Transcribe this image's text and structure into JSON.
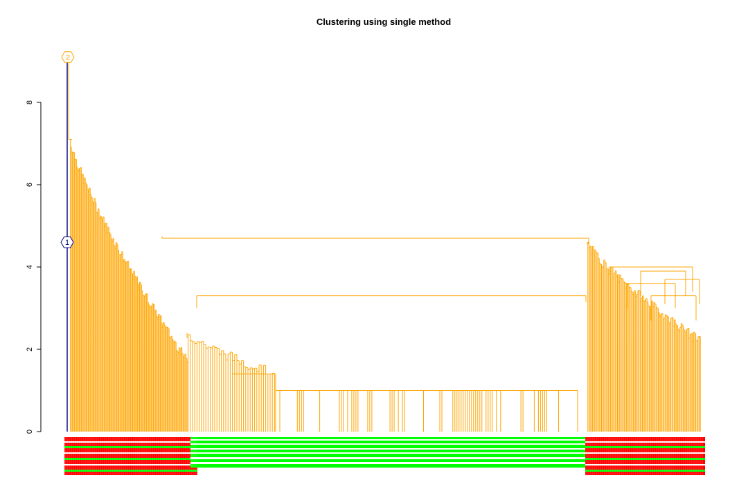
{
  "chart_data": {
    "type": "dendrogram",
    "title": "Clustering using single method",
    "xlabel": "",
    "ylabel": "",
    "ylim": [
      0,
      9.1
    ],
    "yticks": [
      0,
      2,
      4,
      6,
      8
    ],
    "colors": {
      "cluster_1": "#000080",
      "cluster_2": "#ffa500",
      "label_red": "#ff0000",
      "label_green": "#00ff00"
    },
    "clusters": [
      {
        "label": "1",
        "height": 4.6,
        "branch_color": "#000080"
      },
      {
        "label": "2",
        "height": 9.1,
        "branch_color": "#ffa500"
      }
    ],
    "root_height": 9.1,
    "major_merges": [
      {
        "height": 4.7,
        "description": "left block with right block"
      },
      {
        "height": 3.3,
        "description": "central low group with left block"
      }
    ],
    "groups": {
      "left_steep": {
        "leaves": 120,
        "heights_from": 7.1,
        "heights_to": 1.7
      },
      "mid_plateau": {
        "leaves": 40,
        "height": 1.4
      },
      "central_flat": {
        "leaves": 150,
        "height": 1.0
      },
      "right_block": {
        "leaves": 100,
        "heights_from": 4.6,
        "heights_to": 2.2
      }
    }
  }
}
